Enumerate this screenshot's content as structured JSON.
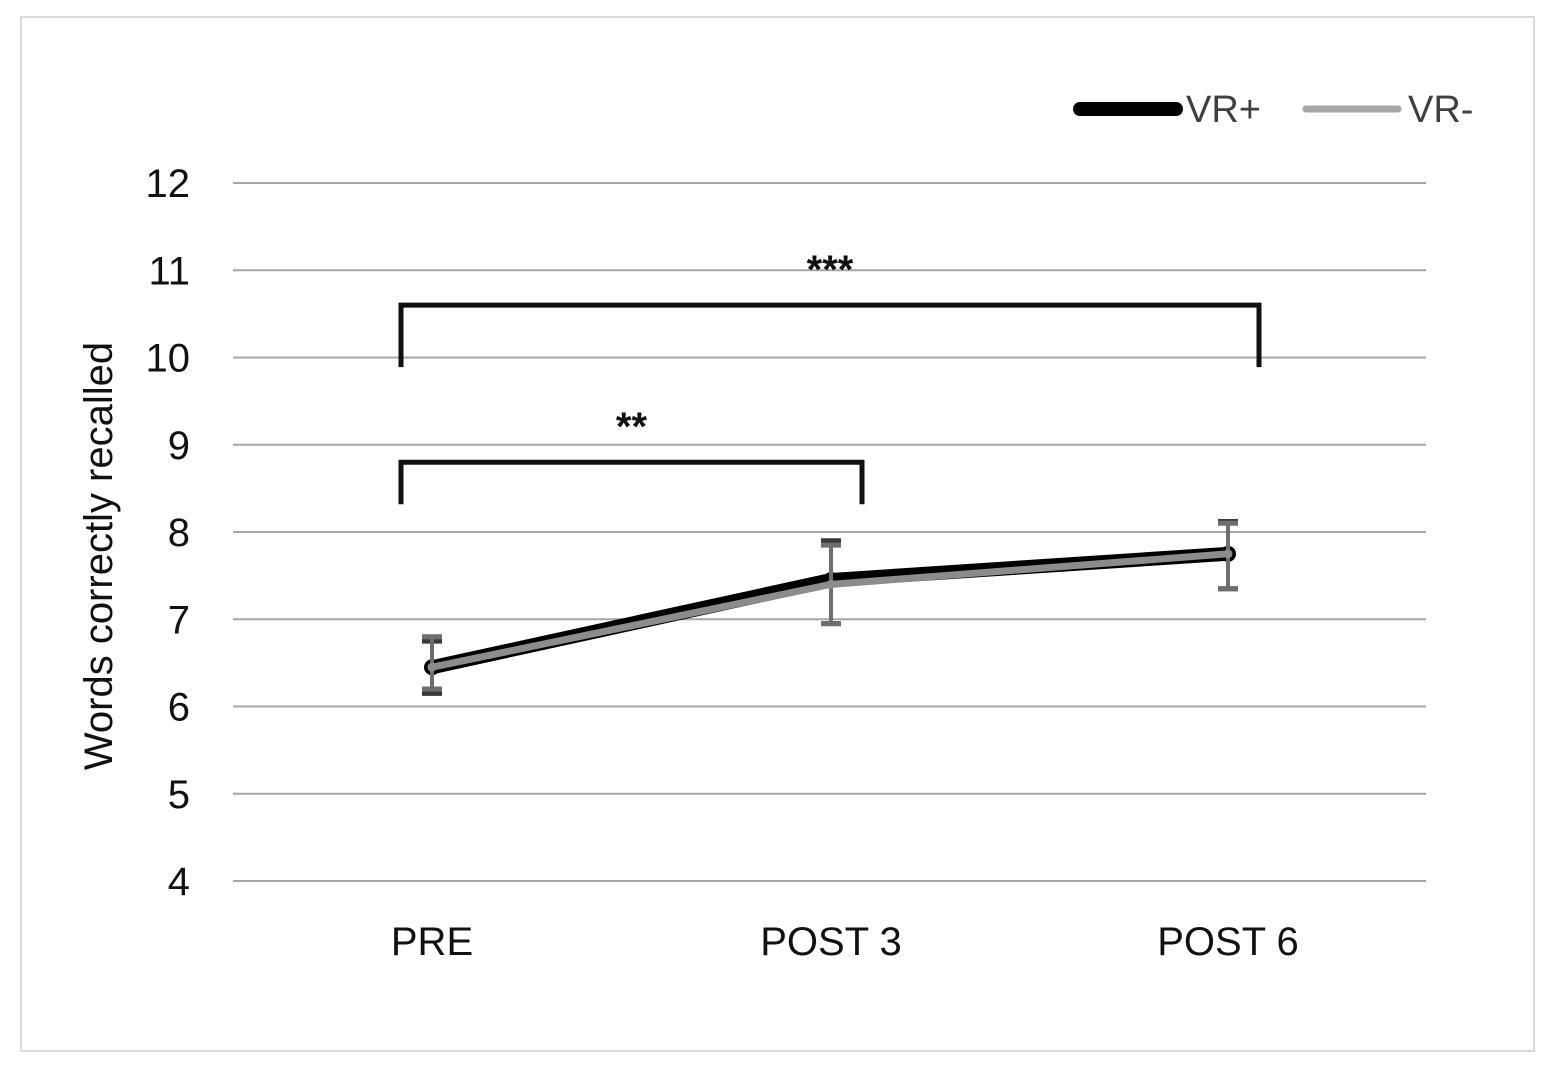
{
  "chart_data": {
    "type": "line",
    "title": "",
    "xlabel": "",
    "ylabel": "Words correctly recalled",
    "categories": [
      "PRE",
      "POST 3",
      "POST 6"
    ],
    "ylim": [
      4,
      12
    ],
    "yticks": [
      4,
      5,
      6,
      7,
      8,
      9,
      10,
      11,
      12
    ],
    "grid": true,
    "legend_position": "top-right",
    "series": [
      {
        "name": "VR+",
        "color": "#000000",
        "values": [
          6.45,
          7.45,
          7.75
        ],
        "err_low": [
          6.15,
          6.95,
          7.35
        ],
        "err_high": [
          6.75,
          7.9,
          8.12
        ]
      },
      {
        "name": "VR-",
        "color": "#8c8c8c",
        "values": [
          6.45,
          7.4,
          7.75
        ],
        "err_low": [
          6.2,
          6.95,
          7.35
        ],
        "err_high": [
          6.8,
          7.85,
          8.1
        ]
      }
    ],
    "significance": [
      {
        "label": "**",
        "from": "PRE",
        "to": "POST 3",
        "level": 8.8
      },
      {
        "label": "***",
        "from": "PRE",
        "to": "POST 6",
        "level": 10.6
      }
    ]
  }
}
